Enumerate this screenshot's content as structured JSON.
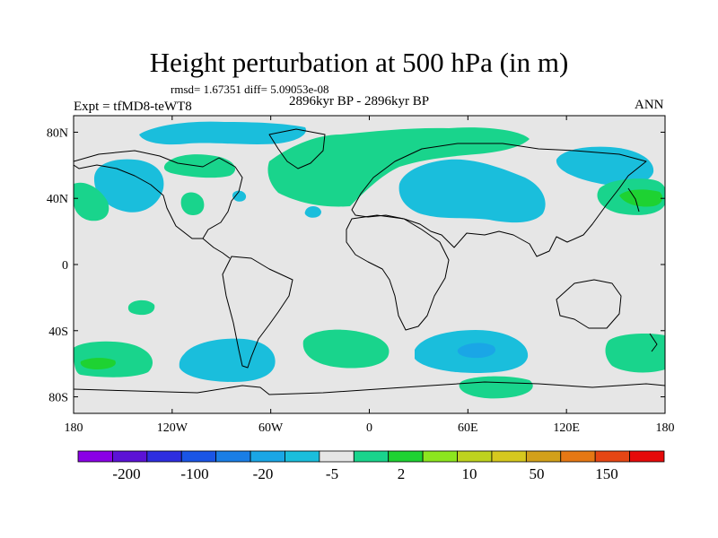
{
  "title": "Height perturbation at 500 hPa (in m)",
  "stats": "rmsd= 1.67351 diff= 5.09053e-08",
  "period": "2896kyr BP - 2896kyr BP",
  "experiment": "Expt = tfMD8-teWT8",
  "season": "ANN",
  "map": {
    "projection": "cylindrical equidistant",
    "lon_range": [
      -180,
      180
    ],
    "lat_range": [
      -90,
      90
    ],
    "x_tick_labels": [
      "180",
      "120W",
      "60W",
      "0",
      "60E",
      "120E",
      "180"
    ],
    "y_tick_labels": [
      "80N",
      "40N",
      "0",
      "40S",
      "80S"
    ],
    "anomaly_regions": [
      {
        "name": "North Pacific / Alaska",
        "sign": "negative",
        "level": "-5"
      },
      {
        "name": "Arctic Canada",
        "sign": "negative",
        "level": "-5"
      },
      {
        "name": "North Atlantic",
        "sign": "positive",
        "level": "2"
      },
      {
        "name": "Eurasia",
        "sign": "negative",
        "level": "-5"
      },
      {
        "name": "Northeast Asia",
        "sign": "negative",
        "level": "-5"
      },
      {
        "name": "Northwest Pacific",
        "sign": "positive",
        "level": "10"
      },
      {
        "name": "South Indian Ocean",
        "sign": "negative",
        "level": "-20"
      },
      {
        "name": "Southeast Pacific",
        "sign": "negative",
        "level": "-5"
      },
      {
        "name": "South Atlantic",
        "sign": "positive",
        "level": "2"
      },
      {
        "name": "South Pacific",
        "sign": "positive",
        "level": "10"
      }
    ]
  },
  "colorbar": {
    "colors": [
      "#8a00e6",
      "#5c12d6",
      "#2e2ee0",
      "#1a55e6",
      "#1a7ee6",
      "#1aa6e6",
      "#1abedc",
      "#e6e6e6",
      "#19d48c",
      "#1ed232",
      "#8ce61e",
      "#bed21e",
      "#d6c81e",
      "#d2a01a",
      "#e67814",
      "#e64614",
      "#e60a0a"
    ],
    "labels": [
      "-200",
      "-100",
      "-20",
      "-5",
      "2",
      "10",
      "50",
      "150"
    ]
  }
}
